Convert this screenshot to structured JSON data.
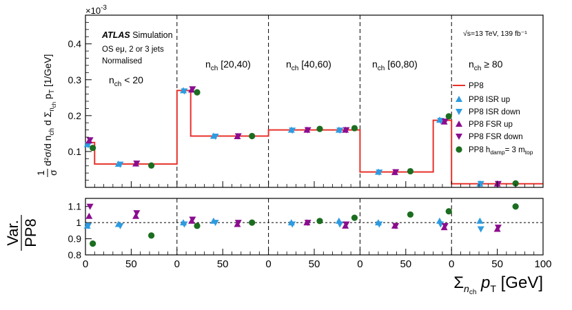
{
  "chart_data": [
    {
      "type": "line",
      "name": "top-panel",
      "exponent_label": "×10",
      "exponent_power": "-3",
      "ylabel": {
        "frac_num": "1",
        "frac_den": "σ",
        "main": "d²σ/d n",
        "main_sub": "ch",
        "mid": " d Σ",
        "mid_sub": "n",
        "mid_subsub": "ch",
        "pt": " p",
        "pt_sub": "T",
        "unit": " [1/GeV]"
      },
      "ylim": [
        0,
        0.48
      ],
      "yticks": [
        {
          "v": 0.1,
          "label": "0.1"
        },
        {
          "v": 0.2,
          "label": "0.2"
        },
        {
          "v": 0.3,
          "label": "0.3"
        },
        {
          "v": 0.4,
          "label": "0.4"
        }
      ],
      "atlas": {
        "bold": "ATLAS",
        "rest": " Simulation"
      },
      "info_lines": [
        "OS eμ, 2 or 3 jets",
        "Normalised"
      ],
      "energy": "√s=13 TeV, 139 fb⁻¹",
      "region_labels": [
        {
          "base": "n",
          "sub": "ch",
          "rest": " < 20"
        },
        {
          "base": "n",
          "sub": "ch",
          "rest": " [20,40)"
        },
        {
          "base": "n",
          "sub": "ch",
          "rest": " [40,60)"
        },
        {
          "base": "n",
          "sub": "ch",
          "rest": " [60,80)"
        },
        {
          "base": "n",
          "sub": "ch",
          "rest": " ≥ 80"
        }
      ],
      "hist_bins": [
        {
          "x0": 0,
          "x1": 10,
          "y": 0.125
        },
        {
          "x0": 10,
          "x1": 100,
          "y": 0.065
        },
        {
          "x0": 100,
          "x1": 115,
          "y": 0.27
        },
        {
          "x0": 115,
          "x1": 200,
          "y": 0.143
        },
        {
          "x0": 200,
          "x1": 300,
          "y": 0.16
        },
        {
          "x0": 300,
          "x1": 380,
          "y": 0.043
        },
        {
          "x0": 380,
          "x1": 400,
          "y": 0.187
        },
        {
          "x0": 400,
          "x1": 500,
          "y": 0.01
        }
      ],
      "series": [
        {
          "name": "PP8 ISR up",
          "marker": "tri-up",
          "color": "#2e9be0",
          "points": [
            [
              2,
              0.12
            ],
            [
              36,
              0.065
            ],
            [
              107,
              0.27
            ],
            [
              140,
              0.143
            ],
            [
              225,
              0.16
            ],
            [
              277,
              0.16
            ],
            [
              320,
              0.043
            ],
            [
              387,
              0.188
            ],
            [
              431,
              0.01
            ]
          ]
        },
        {
          "name": "PP8 ISR down",
          "marker": "tri-down",
          "color": "#2e9be0",
          "points": [
            [
              3,
              0.118
            ],
            [
              38,
              0.064
            ],
            [
              108,
              0.268
            ],
            [
              142,
              0.142
            ],
            [
              226,
              0.159
            ],
            [
              278,
              0.159
            ],
            [
              321,
              0.042
            ],
            [
              388,
              0.186
            ],
            [
              432,
              0.01
            ]
          ]
        },
        {
          "name": "PP8 FSR up",
          "marker": "tri-up",
          "color": "#8b0d8f",
          "points": [
            [
              4,
              0.13
            ],
            [
              55,
              0.066
            ],
            [
              116,
              0.272
            ],
            [
              166,
              0.142
            ],
            [
              242,
              0.16
            ],
            [
              284,
              0.16
            ],
            [
              338,
              0.042
            ],
            [
              392,
              0.183
            ],
            [
              450,
              0.01
            ]
          ]
        },
        {
          "name": "PP8 FSR down",
          "marker": "tri-down",
          "color": "#8b0d8f",
          "points": [
            [
              5,
              0.132
            ],
            [
              56,
              0.067
            ],
            [
              117,
              0.274
            ],
            [
              167,
              0.143
            ],
            [
              243,
              0.16
            ],
            [
              285,
              0.16
            ],
            [
              339,
              0.043
            ],
            [
              393,
              0.184
            ],
            [
              451,
              0.01
            ]
          ]
        },
        {
          "name": "PP8 h_damp= 3 m_top",
          "marker": "circle",
          "color": "#1b6e1f",
          "points": [
            [
              8,
              0.11
            ],
            [
              72,
              0.061
            ],
            [
              122,
              0.265
            ],
            [
              182,
              0.143
            ],
            [
              256,
              0.163
            ],
            [
              294,
              0.165
            ],
            [
              355,
              0.045
            ],
            [
              397,
              0.198
            ],
            [
              470,
              0.011
            ]
          ]
        }
      ],
      "legend": [
        {
          "label": "PP8",
          "marker": "line",
          "color": "#e8302a"
        },
        {
          "label": "PP8 ISR up",
          "marker": "tri-up",
          "color": "#2e9be0"
        },
        {
          "label": "PP8 ISR down",
          "marker": "tri-down",
          "color": "#2e9be0"
        },
        {
          "label": "PP8 FSR up",
          "marker": "tri-up",
          "color": "#8b0d8f"
        },
        {
          "label": "PP8 FSR down",
          "marker": "tri-down",
          "color": "#8b0d8f"
        },
        {
          "label": "PP8 h",
          "sub": "damp",
          "rest": "= 3 m",
          "sub2": "top",
          "marker": "circle",
          "color": "#1b6e1f"
        }
      ],
      "legend_position": "right"
    },
    {
      "type": "scatter",
      "name": "ratio-panel",
      "ylabel_num": "Var.",
      "ylabel_den": "PP8",
      "ylim": [
        0.8,
        1.15
      ],
      "yticks": [
        {
          "v": 0.8,
          "label": "0.8"
        },
        {
          "v": 0.9,
          "label": "0.9"
        },
        {
          "v": 1.0,
          "label": "1"
        },
        {
          "v": 1.1,
          "label": "1.1"
        }
      ],
      "reference_line": 1.0,
      "xticks": [
        {
          "x": 0,
          "label": "0"
        },
        {
          "x": 50,
          "label": "50"
        },
        {
          "x": 100,
          "label": "0"
        },
        {
          "x": 150,
          "label": "50"
        },
        {
          "x": 200,
          "label": "0"
        },
        {
          "x": 250,
          "label": "50"
        },
        {
          "x": 300,
          "label": "0"
        },
        {
          "x": 350,
          "label": "50"
        },
        {
          "x": 400,
          "label": "0"
        },
        {
          "x": 450,
          "label": "50"
        },
        {
          "x": 500,
          "label": "100"
        }
      ],
      "xlabel": {
        "sigma": "Σ",
        "sub": "n",
        "subsub": "ch",
        "pt": " p",
        "pt_sub": "T",
        "unit": " [GeV]"
      },
      "series": [
        {
          "name": "PP8 ISR up",
          "marker": "tri-up",
          "color": "#2e9be0",
          "points": [
            [
              2,
              0.98
            ],
            [
              36,
              0.99
            ],
            [
              107,
              1.0
            ],
            [
              140,
              1.01
            ],
            [
              225,
              1.0
            ],
            [
              277,
              1.01
            ],
            [
              320,
              1.0
            ],
            [
              387,
              1.01
            ],
            [
              431,
              1.01
            ]
          ]
        },
        {
          "name": "PP8 ISR down",
          "marker": "tri-down",
          "color": "#2e9be0",
          "points": [
            [
              3,
              0.98
            ],
            [
              38,
              0.98
            ],
            [
              108,
              0.99
            ],
            [
              142,
              1.0
            ],
            [
              226,
              0.99
            ],
            [
              278,
              0.99
            ],
            [
              321,
              0.99
            ],
            [
              388,
              0.99
            ],
            [
              432,
              0.96
            ]
          ]
        },
        {
          "name": "PP8 FSR up",
          "marker": "tri-up",
          "color": "#8b0d8f",
          "points": [
            [
              4,
              1.04
            ],
            [
              55,
              1.04
            ],
            [
              116,
              1.01
            ],
            [
              166,
              0.99
            ],
            [
              242,
              1.0
            ],
            [
              284,
              0.98
            ],
            [
              338,
              0.98
            ],
            [
              392,
              0.97
            ],
            [
              450,
              0.96
            ]
          ]
        },
        {
          "name": "PP8 FSR down",
          "marker": "tri-down",
          "color": "#8b0d8f",
          "points": [
            [
              5,
              1.1
            ],
            [
              56,
              1.06
            ],
            [
              117,
              1.02
            ],
            [
              167,
              1.0
            ],
            [
              243,
              1.0
            ],
            [
              285,
              0.99
            ],
            [
              339,
              0.98
            ],
            [
              393,
              0.98
            ],
            [
              451,
              0.97
            ]
          ]
        },
        {
          "name": "PP8 h_damp= 3 m_top",
          "marker": "circle",
          "color": "#1b6e1f",
          "points": [
            [
              8,
              0.87
            ],
            [
              72,
              0.92
            ],
            [
              122,
              0.98
            ],
            [
              182,
              1.0
            ],
            [
              256,
              1.01
            ],
            [
              294,
              1.03
            ],
            [
              355,
              1.05
            ],
            [
              397,
              1.07
            ],
            [
              470,
              1.1
            ]
          ]
        }
      ]
    }
  ]
}
